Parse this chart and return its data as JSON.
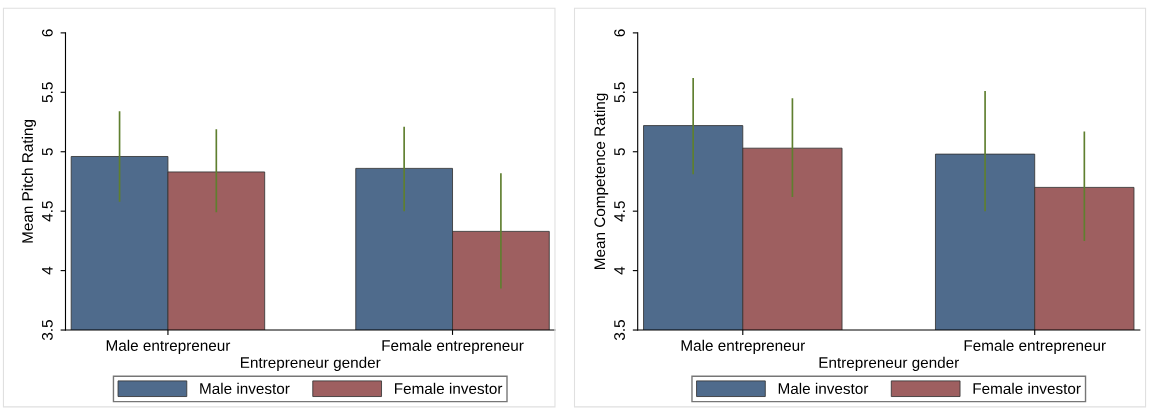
{
  "chart_data": [
    {
      "type": "bar",
      "ylabel": "Mean Pitch Rating",
      "xlabel": "Entrepreneur gender",
      "categories": [
        "Male entrepreneur",
        "Female entrepreneur"
      ],
      "series": [
        {
          "name": "Male investor",
          "color": "#4f6b8c",
          "values": [
            4.96,
            4.86
          ],
          "errors": [
            [
              4.58,
              5.34
            ],
            [
              4.5,
              5.21
            ]
          ]
        },
        {
          "name": "Female investor",
          "color": "#9e5f60",
          "values": [
            4.83,
            4.33
          ],
          "errors": [
            [
              4.49,
              5.19
            ],
            [
              3.85,
              4.82
            ]
          ]
        }
      ],
      "ylim": [
        3.5,
        6
      ],
      "yticks": [
        3.5,
        4,
        4.5,
        5,
        5.5,
        6
      ],
      "legend": "bottom",
      "grid": false
    },
    {
      "type": "bar",
      "ylabel": "Mean Competence Rating",
      "xlabel": "Entrepreneur gender",
      "categories": [
        "Male entrepreneur",
        "Female entrepreneur"
      ],
      "series": [
        {
          "name": "Male investor",
          "color": "#4f6b8c",
          "values": [
            5.22,
            4.98
          ],
          "errors": [
            [
              4.81,
              5.62
            ],
            [
              4.5,
              5.51
            ]
          ]
        },
        {
          "name": "Female investor",
          "color": "#9e5f60",
          "values": [
            5.03,
            4.7
          ],
          "errors": [
            [
              4.62,
              5.45
            ],
            [
              4.25,
              5.17
            ]
          ]
        }
      ],
      "ylim": [
        3.5,
        6
      ],
      "yticks": [
        3.5,
        4,
        4.5,
        5,
        5.5,
        6
      ],
      "legend": "bottom",
      "grid": false
    }
  ]
}
